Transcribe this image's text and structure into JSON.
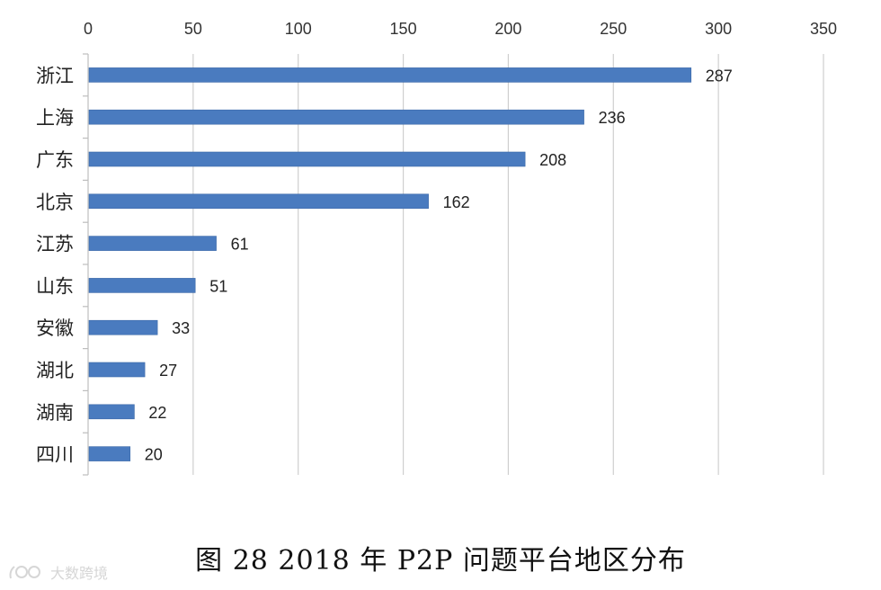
{
  "chart_data": {
    "type": "bar",
    "orientation": "horizontal",
    "categories": [
      "浙江",
      "上海",
      "广东",
      "北京",
      "江苏",
      "山东",
      "安徽",
      "湖北",
      "湖南",
      "四川"
    ],
    "values": [
      287,
      236,
      208,
      162,
      61,
      51,
      33,
      27,
      22,
      20
    ],
    "xlim": [
      0,
      350
    ],
    "xticks": [
      0,
      50,
      100,
      150,
      200,
      250,
      300,
      350
    ],
    "x_axis_position": "top",
    "grid": true,
    "legend": "none",
    "data_labels": true,
    "bar_color": "#4a7bbf",
    "title": "图 28    2018 年 P2P 问题平台地区分布"
  },
  "watermark": {
    "text": "大数跨境"
  }
}
